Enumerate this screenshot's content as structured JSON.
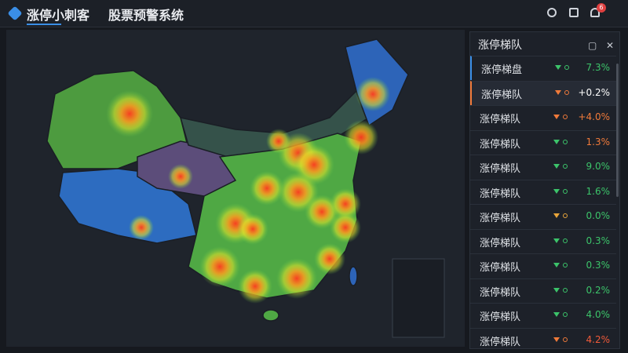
{
  "header": {
    "title": "涨停小刺客",
    "subtitle": "股票预警系统",
    "notification_count": "6"
  },
  "panel": {
    "title": "涨停梯队",
    "rows": [
      {
        "name": "涨停梯盘",
        "value": "7.3%",
        "arrow_color": "#3cc46a",
        "value_color": "#3cc46a"
      },
      {
        "name": "涨停梯队",
        "value": "+0.2%",
        "arrow_color": "#f07a3a",
        "value_color": "#ffffff"
      },
      {
        "name": "涨停梯队",
        "value": "+4.0%",
        "arrow_color": "#f07a3a",
        "value_color": "#f07a3a"
      },
      {
        "name": "涨停梯队",
        "value": "1.3%",
        "arrow_color": "#3cc46a",
        "value_color": "#f07a3a"
      },
      {
        "name": "涨停梯队",
        "value": "9.0%",
        "arrow_color": "#3cc46a",
        "value_color": "#3cc46a"
      },
      {
        "name": "涨停梯队",
        "value": "1.6%",
        "arrow_color": "#3cc46a",
        "value_color": "#3cc46a"
      },
      {
        "name": "涨停梯队",
        "value": "0.0%",
        "arrow_color": "#e8a53a",
        "value_color": "#3cc46a"
      },
      {
        "name": "涨停梯队",
        "value": "0.3%",
        "arrow_color": "#3cc46a",
        "value_color": "#3cc46a"
      },
      {
        "name": "涨停梯队",
        "value": "0.3%",
        "arrow_color": "#3cc46a",
        "value_color": "#3cc46a"
      },
      {
        "name": "涨停梯队",
        "value": "0.2%",
        "arrow_color": "#3cc46a",
        "value_color": "#3cc46a"
      },
      {
        "name": "涨停梯队",
        "value": "4.0%",
        "arrow_color": "#3cc46a",
        "value_color": "#3cc46a"
      },
      {
        "name": "涨停梯队",
        "value": "4.2%",
        "arrow_color": "#f07a3a",
        "value_color": "#f05a3a"
      }
    ]
  }
}
